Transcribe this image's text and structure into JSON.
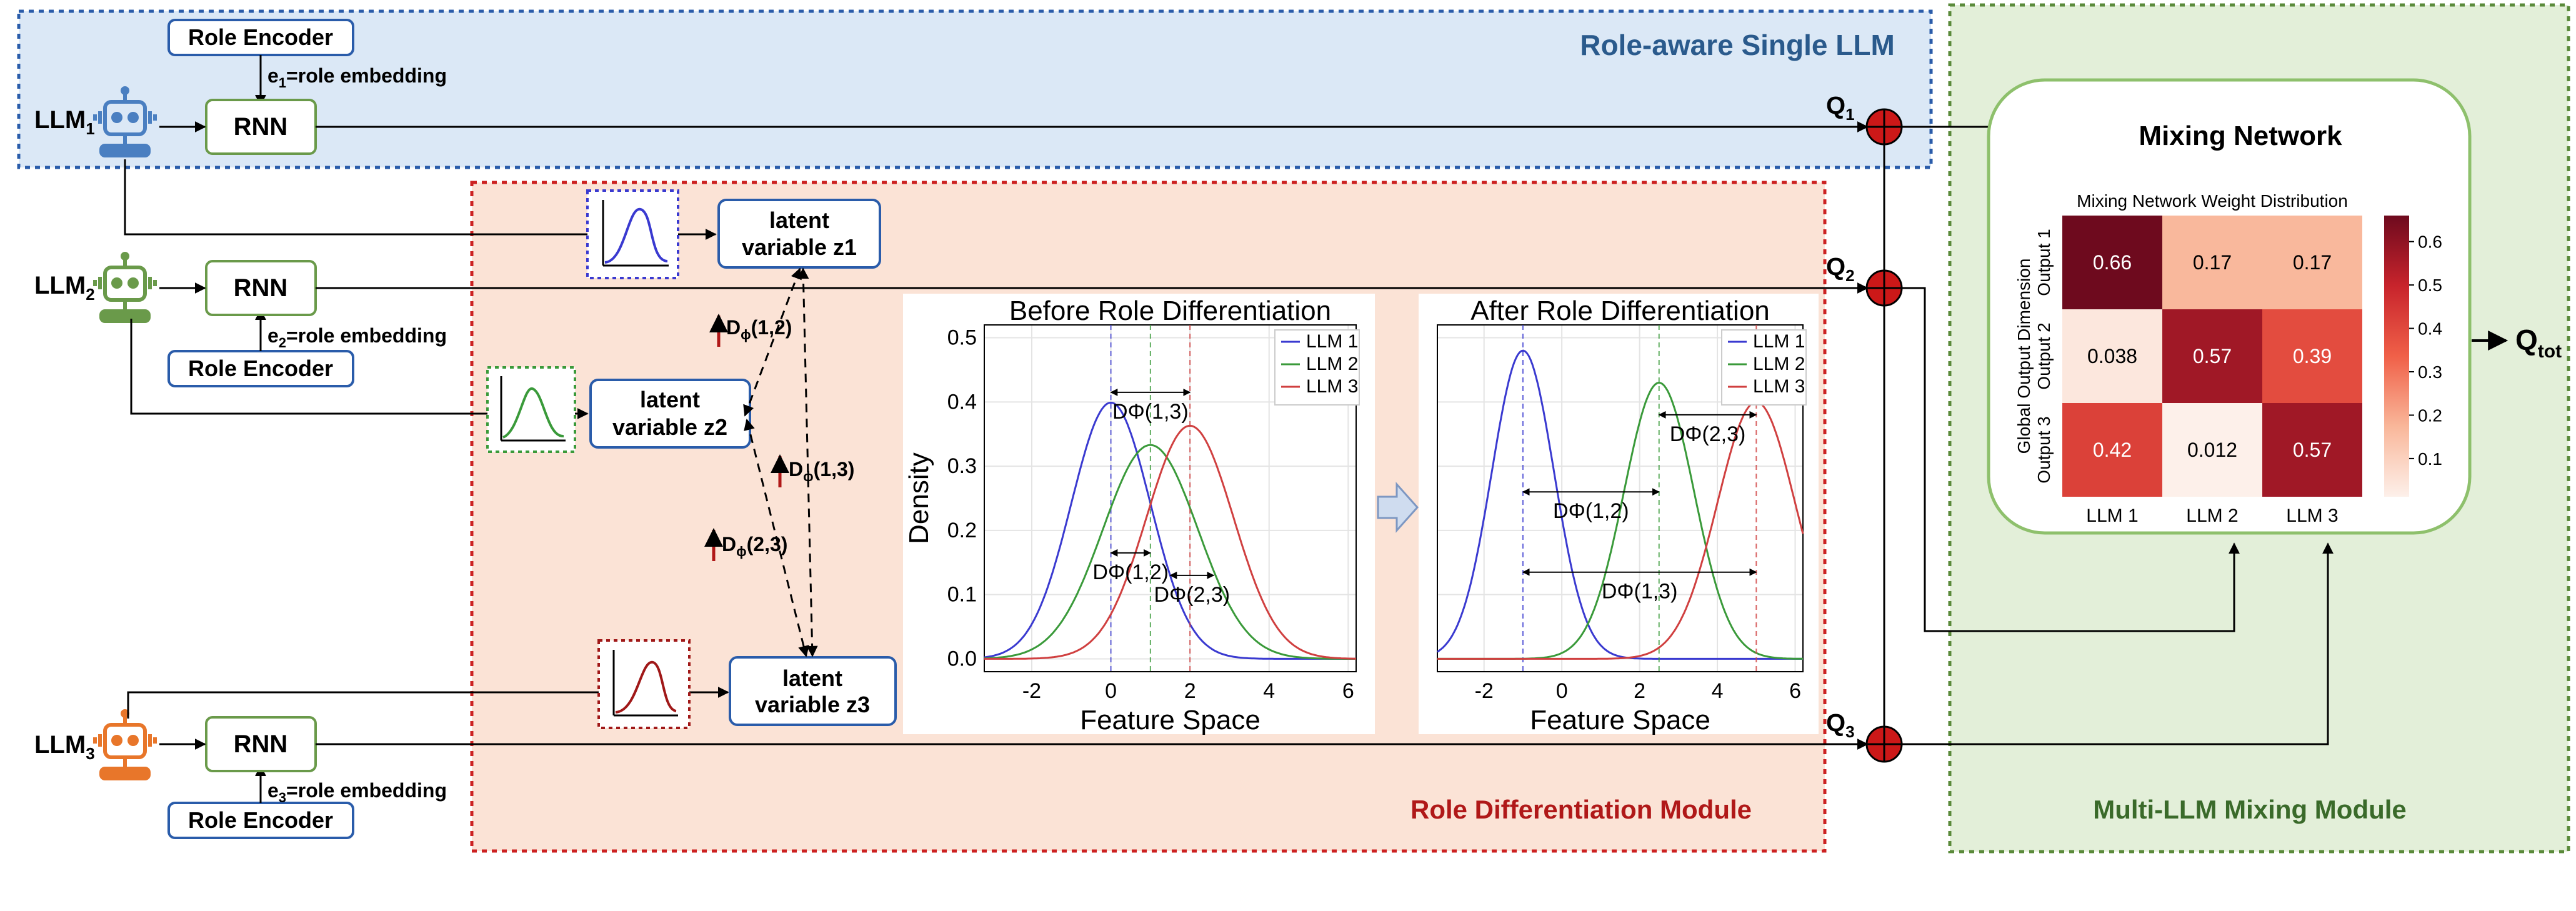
{
  "regions": {
    "role_aware": "Role-aware Single LLM",
    "role_diff": "Role Differentiation Module",
    "mixing_module": "Multi-LLM Mixing Module"
  },
  "llms": [
    {
      "name": "LLM",
      "sub": "1",
      "color": "#4a7fc1",
      "embedding_text": "=role embedding",
      "e_label": "e",
      "e_sub": "1"
    },
    {
      "name": "LLM",
      "sub": "2",
      "color": "#6a9a4a",
      "embedding_text": "=role embedding",
      "e_label": "e",
      "e_sub": "2"
    },
    {
      "name": "LLM",
      "sub": "3",
      "color": "#e8762a",
      "embedding_text": "=role embedding",
      "e_label": "e",
      "e_sub": "3"
    }
  ],
  "labels": {
    "role_encoder": "Role Encoder",
    "rnn": "RNN"
  },
  "latents": [
    {
      "line1": "latent",
      "line2": "variable z1"
    },
    {
      "line1": "latent",
      "line2": "variable z2"
    },
    {
      "line1": "latent",
      "line2": "variable z3"
    }
  ],
  "distances": [
    {
      "text": "D",
      "sub": "ϕ",
      "args": "(1,2)"
    },
    {
      "text": "D",
      "sub": "ϕ",
      "args": "(1,3)"
    },
    {
      "text": "D",
      "sub": "ϕ",
      "args": "(2,3)"
    }
  ],
  "q_labels": [
    {
      "text": "Q",
      "sub": "1"
    },
    {
      "text": "Q",
      "sub": "2"
    },
    {
      "text": "Q",
      "sub": "3"
    }
  ],
  "q_total": {
    "text": "Q",
    "sub": "tot"
  },
  "colors": {
    "llm1": "#3a3ad0",
    "llm2": "#3a9a3a",
    "llm3": "#d04040",
    "role_bg": "#dbe8f6",
    "diff_bg": "#fbe3d6",
    "mix_bg": "#e3efd9"
  },
  "mixing_network": {
    "title": "Mixing Network",
    "heatmap_title": "Mixing Network Weight Distribution"
  },
  "chart_data": [
    {
      "type": "line",
      "title": "Before Role Differentiation",
      "xlabel": "Feature Space",
      "ylabel": "Density",
      "xlim": [
        -3.2,
        6.2
      ],
      "ylim": [
        -0.02,
        0.52
      ],
      "xticks": [
        -2,
        0,
        2,
        4,
        6
      ],
      "yticks": [
        0.0,
        0.1,
        0.2,
        0.3,
        0.4,
        0.5
      ],
      "series": [
        {
          "name": "LLM 1",
          "mean": 0.0,
          "sd": 1.0,
          "amp": 0.399
        },
        {
          "name": "LLM 2",
          "mean": 1.0,
          "sd": 1.2,
          "amp": 0.333
        },
        {
          "name": "LLM 3",
          "mean": 2.0,
          "sd": 1.1,
          "amp": 0.363
        }
      ],
      "annotations": [
        {
          "text": "DΦ(1,3)",
          "x1": 0.0,
          "x2": 2.0,
          "y": 0.415
        },
        {
          "text": "DΦ(1,2)",
          "x1": 0.0,
          "x2": 1.0,
          "y": 0.165
        },
        {
          "text": "DΦ(2,3)",
          "x1": 1.5,
          "x2": 2.6,
          "y": 0.13
        }
      ]
    },
    {
      "type": "line",
      "title": "After Role Differentiation",
      "xlabel": "Feature Space",
      "ylabel": "",
      "xlim": [
        -3.2,
        6.2
      ],
      "ylim": [
        -0.02,
        0.52
      ],
      "xticks": [
        -2,
        0,
        2,
        4,
        6
      ],
      "yticks": [],
      "series": [
        {
          "name": "LLM 1",
          "mean": -1.0,
          "sd": 0.8,
          "amp": 0.48
        },
        {
          "name": "LLM 2",
          "mean": 2.5,
          "sd": 0.9,
          "amp": 0.43
        },
        {
          "name": "LLM 3",
          "mean": 5.0,
          "sd": 1.0,
          "amp": 0.4
        }
      ],
      "annotations": [
        {
          "text": "DΦ(2,3)",
          "x1": 2.5,
          "x2": 5.0,
          "y": 0.38
        },
        {
          "text": "DΦ(1,2)",
          "x1": -1.0,
          "x2": 2.5,
          "y": 0.26
        },
        {
          "text": "DΦ(1,3)",
          "x1": -1.0,
          "x2": 5.0,
          "y": 0.135
        }
      ]
    },
    {
      "type": "heatmap",
      "title": "Mixing Network Weight Distribution",
      "ylabel": "Global Output Dimension",
      "row_labels": [
        "Output 1",
        "Output 2",
        "Output 3"
      ],
      "col_labels": [
        "LLM 1",
        "LLM 2",
        "LLM 3"
      ],
      "values": [
        [
          0.66,
          0.17,
          0.17
        ],
        [
          0.038,
          0.57,
          0.39
        ],
        [
          0.42,
          0.012,
          0.57
        ]
      ],
      "value_labels": [
        [
          "0.66",
          "0.17",
          "0.17"
        ],
        [
          "0.038",
          "0.57",
          "0.39"
        ],
        [
          "0.42",
          "0.012",
          "0.57"
        ]
      ],
      "colorbar_ticks": [
        "0.6",
        "0.5",
        "0.4",
        "0.3",
        "0.2",
        "0.1"
      ],
      "colorbar_range": [
        0.012,
        0.66
      ]
    }
  ]
}
